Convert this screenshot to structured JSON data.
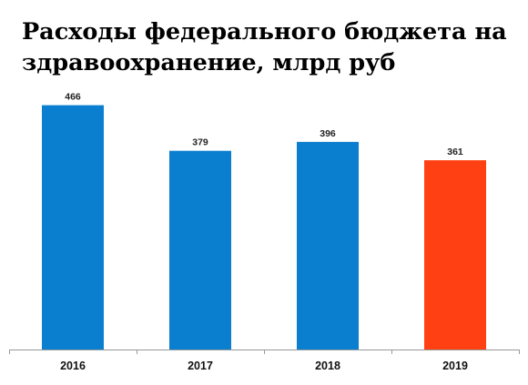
{
  "chart_data": {
    "type": "bar",
    "title": "Расходы федерального бюджета на здравоохранение, млрд руб",
    "xlabel": "",
    "ylabel": "",
    "categories": [
      "2016",
      "2017",
      "2018",
      "2019"
    ],
    "values": [
      466,
      379,
      396,
      361
    ],
    "value_labels": [
      "466",
      "379",
      "396",
      "361"
    ],
    "bar_colors": [
      "#0a7fd0",
      "#0a7fd0",
      "#0a7fd0",
      "#ff4012"
    ],
    "ylim": [
      0,
      500
    ],
    "grid": false,
    "axis_color": "#999999"
  }
}
